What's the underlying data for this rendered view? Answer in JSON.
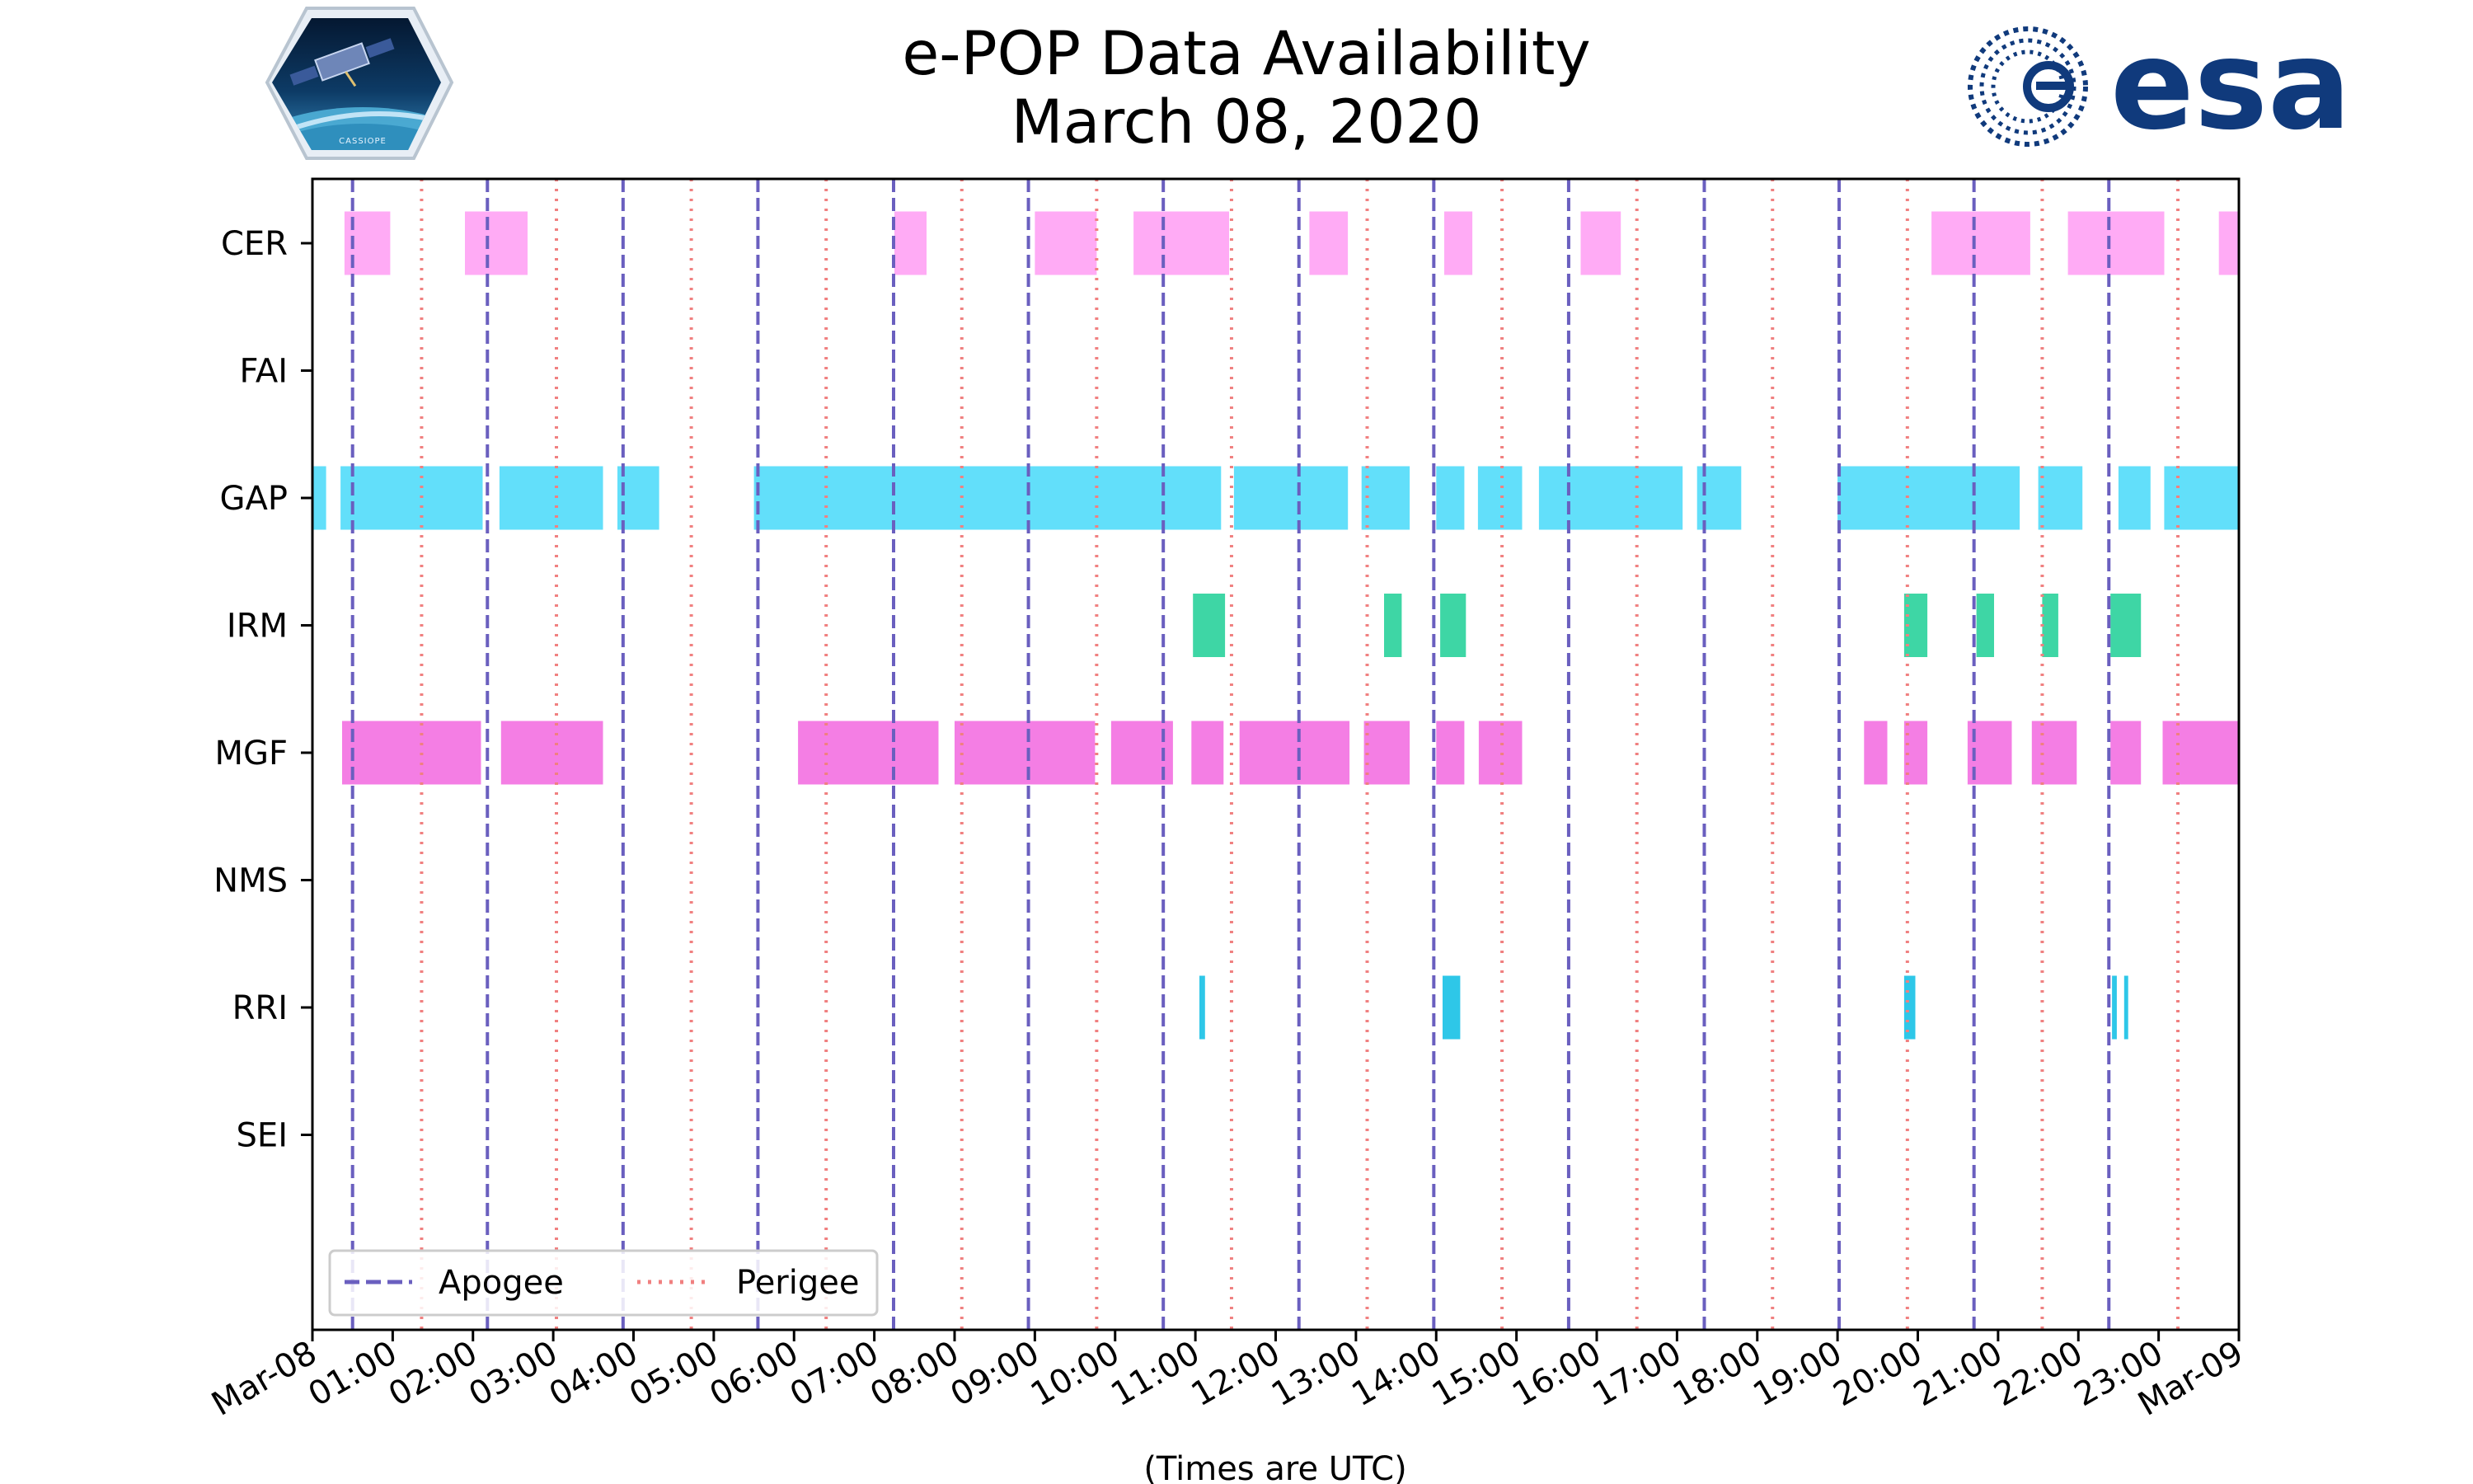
{
  "header": {
    "title_line1": "e-POP Data Availability",
    "title_line2": "March 08, 2020",
    "left_logo_text": "CASSIOPE",
    "right_logo_text": "esa"
  },
  "chart_data": {
    "type": "timeline",
    "title": "e-POP Data Availability March 08, 2020",
    "xlabel": "(Times are UTC)",
    "ylabel": "",
    "xlim_hours": [
      0,
      24
    ],
    "x_tick_labels": [
      "Mar-08",
      "01:00",
      "02:00",
      "03:00",
      "04:00",
      "05:00",
      "06:00",
      "07:00",
      "08:00",
      "09:00",
      "10:00",
      "11:00",
      "12:00",
      "13:00",
      "14:00",
      "15:00",
      "16:00",
      "17:00",
      "18:00",
      "19:00",
      "20:00",
      "21:00",
      "22:00",
      "23:00",
      "Mar-09"
    ],
    "instruments": [
      "CER",
      "FAI",
      "GAP",
      "IRM",
      "MGF",
      "NMS",
      "RRI",
      "SEI"
    ],
    "colors": {
      "CER": "#ffabf5",
      "FAI": "#e6aaff",
      "GAP": "#62dffa",
      "IRM": "#3ed6a5",
      "MGF": "#f47ee4",
      "NMS": "#8888ff",
      "RRI": "#2ec7e8",
      "SEI": "#aaaaaa",
      "apogee": "#6a5fbf",
      "perigee": "#f08080",
      "axis": "#000000"
    },
    "intervals": {
      "CER": [
        [
          0.4,
          0.97
        ],
        [
          1.9,
          2.68
        ],
        [
          7.25,
          7.65
        ],
        [
          9.0,
          9.77
        ],
        [
          10.23,
          11.42
        ],
        [
          12.42,
          12.9
        ],
        [
          14.1,
          14.45
        ],
        [
          15.8,
          16.3
        ],
        [
          20.17,
          21.4
        ],
        [
          21.87,
          23.07
        ],
        [
          23.75,
          24.0
        ]
      ],
      "FAI": [],
      "GAP": [
        [
          0.0,
          0.17
        ],
        [
          0.35,
          2.12
        ],
        [
          2.33,
          3.62
        ],
        [
          3.8,
          4.32
        ],
        [
          5.5,
          11.32
        ],
        [
          11.48,
          12.9
        ],
        [
          13.07,
          13.67
        ],
        [
          14.0,
          14.35
        ],
        [
          14.52,
          15.07
        ],
        [
          15.28,
          17.07
        ],
        [
          17.25,
          17.8
        ],
        [
          19.0,
          21.27
        ],
        [
          21.5,
          22.05
        ],
        [
          22.5,
          22.9
        ],
        [
          23.07,
          24.0
        ]
      ],
      "IRM": [
        [
          10.97,
          11.37
        ],
        [
          13.35,
          13.57
        ],
        [
          14.05,
          14.37
        ],
        [
          19.83,
          20.12
        ],
        [
          20.73,
          20.95
        ],
        [
          21.55,
          21.75
        ],
        [
          22.4,
          22.78
        ]
      ],
      "MGF": [
        [
          0.37,
          2.1
        ],
        [
          2.35,
          3.62
        ],
        [
          6.05,
          7.8
        ],
        [
          8.0,
          9.75
        ],
        [
          9.95,
          10.72
        ],
        [
          10.95,
          11.35
        ],
        [
          11.55,
          12.92
        ],
        [
          13.1,
          13.67
        ],
        [
          14.0,
          14.35
        ],
        [
          14.53,
          15.07
        ],
        [
          19.33,
          19.62
        ],
        [
          19.83,
          20.12
        ],
        [
          20.62,
          21.17
        ],
        [
          21.42,
          21.98
        ],
        [
          22.4,
          22.78
        ],
        [
          23.05,
          24.0
        ]
      ],
      "NMS": [],
      "RRI": [
        [
          11.05,
          11.12
        ],
        [
          14.08,
          14.3
        ],
        [
          19.83,
          19.97
        ],
        [
          22.42,
          22.48
        ],
        [
          22.57,
          22.62
        ]
      ],
      "SEI": []
    },
    "apogee_hours": [
      0.5,
      2.18,
      3.87,
      5.55,
      7.24,
      8.92,
      10.6,
      12.29,
      13.97,
      15.65,
      17.34,
      19.02,
      20.7,
      22.38
    ],
    "perigee_hours": [
      1.36,
      3.04,
      4.72,
      6.4,
      8.09,
      9.77,
      11.45,
      13.14,
      14.82,
      16.5,
      18.19,
      19.87,
      21.55,
      23.24
    ],
    "legend": {
      "position": "lower-left",
      "apogee_label": "Apogee",
      "perigee_label": "Perigee"
    }
  }
}
